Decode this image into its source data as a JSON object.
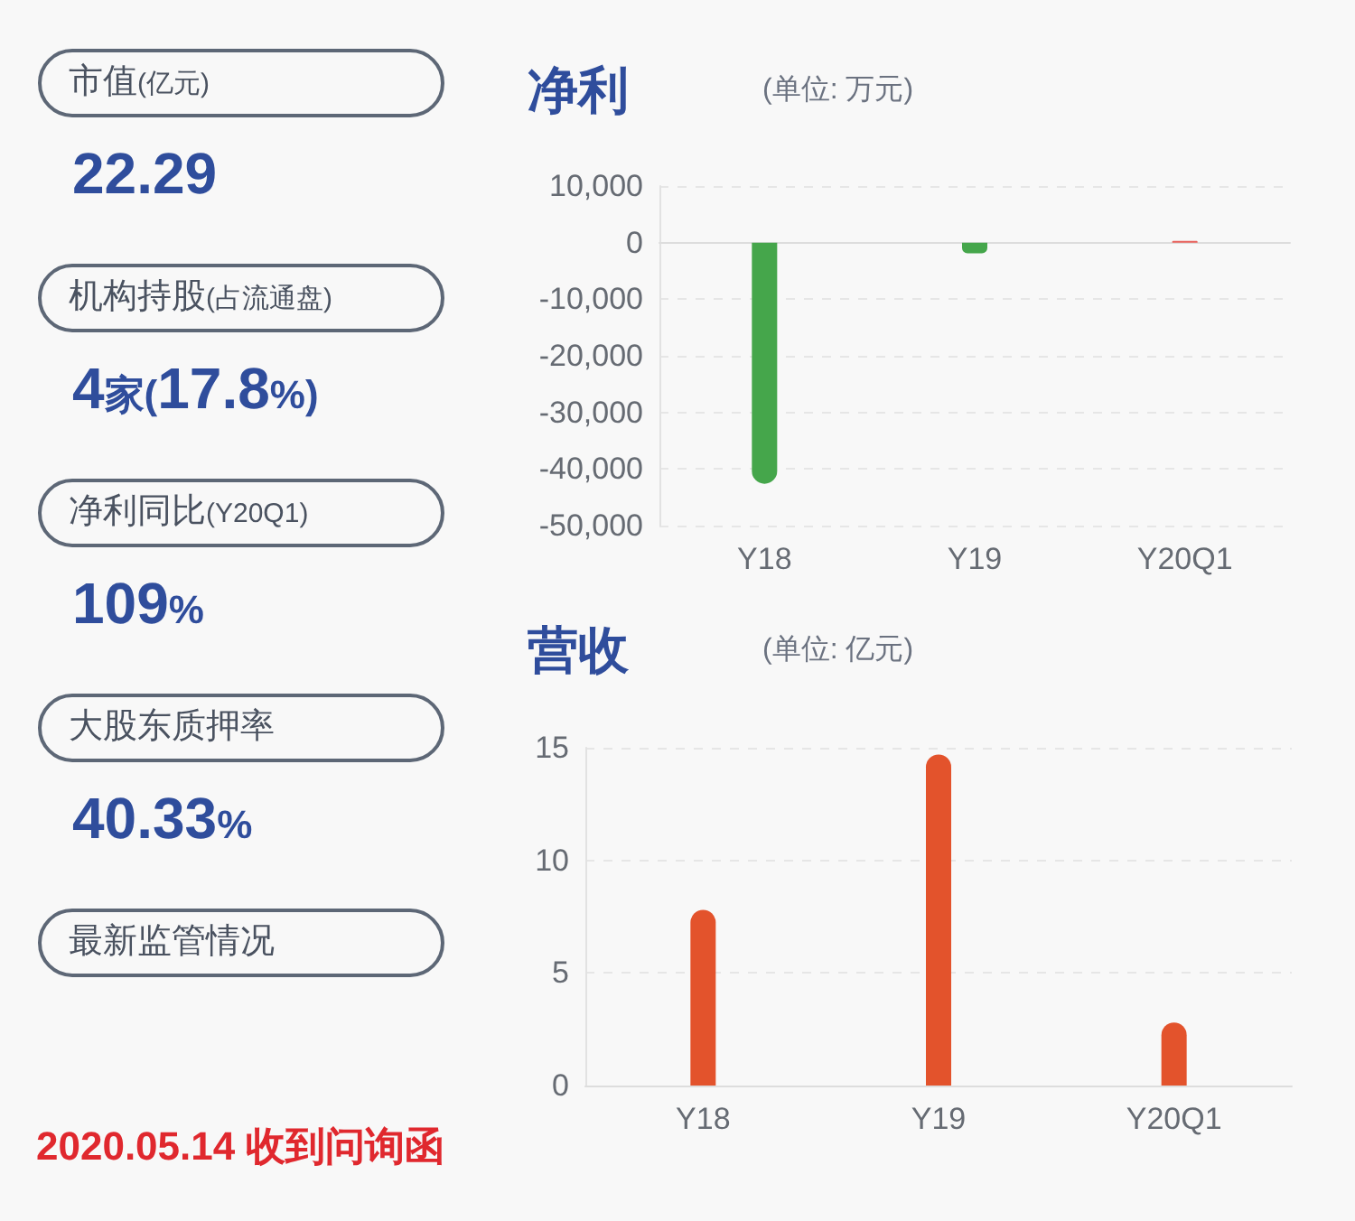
{
  "chart_data": [
    {
      "type": "other",
      "annotations": [
        "市值(亿元)",
        "22.29",
        "机构持股(占流通盘)",
        "4家(17.8%)",
        "净利同比(Y20Q1)",
        "109%",
        "大股东质押率",
        "40.33%",
        "最新监管情况",
        "2020.05.14 收到问询函"
      ]
    },
    {
      "type": "bar",
      "title": "净利",
      "subtitle": "(单位: 万元)",
      "categories": [
        "Y18",
        "Y19",
        "Y20Q1"
      ],
      "values": [
        -42600,
        -1900,
        300
      ],
      "colors": [
        "#45a64b",
        "#45a64b",
        "#e8605a"
      ],
      "ylim": [
        -50000,
        10000
      ],
      "yticks": [
        {
          "value": -50000,
          "label": "-50,000"
        },
        {
          "value": -40000,
          "label": "-40,000"
        },
        {
          "value": -30000,
          "label": "-30,000"
        },
        {
          "value": -20000,
          "label": "-20,000"
        },
        {
          "value": -10000,
          "label": "-10,000"
        },
        0,
        {
          "value": 10000,
          "label": "10,000"
        }
      ],
      "grid": "y"
    },
    {
      "type": "bar",
      "title": "营收",
      "subtitle": "(单位: 亿元)",
      "categories": [
        "Y18",
        "Y19",
        "Y20Q1"
      ],
      "values": [
        7.8,
        14.7,
        2.8
      ],
      "colors": [
        "#e3532c",
        "#e3532c",
        "#e3532c"
      ],
      "ylim": [
        0,
        15
      ],
      "yticks": [
        0,
        5,
        10,
        15
      ],
      "grid": "y"
    }
  ]
}
